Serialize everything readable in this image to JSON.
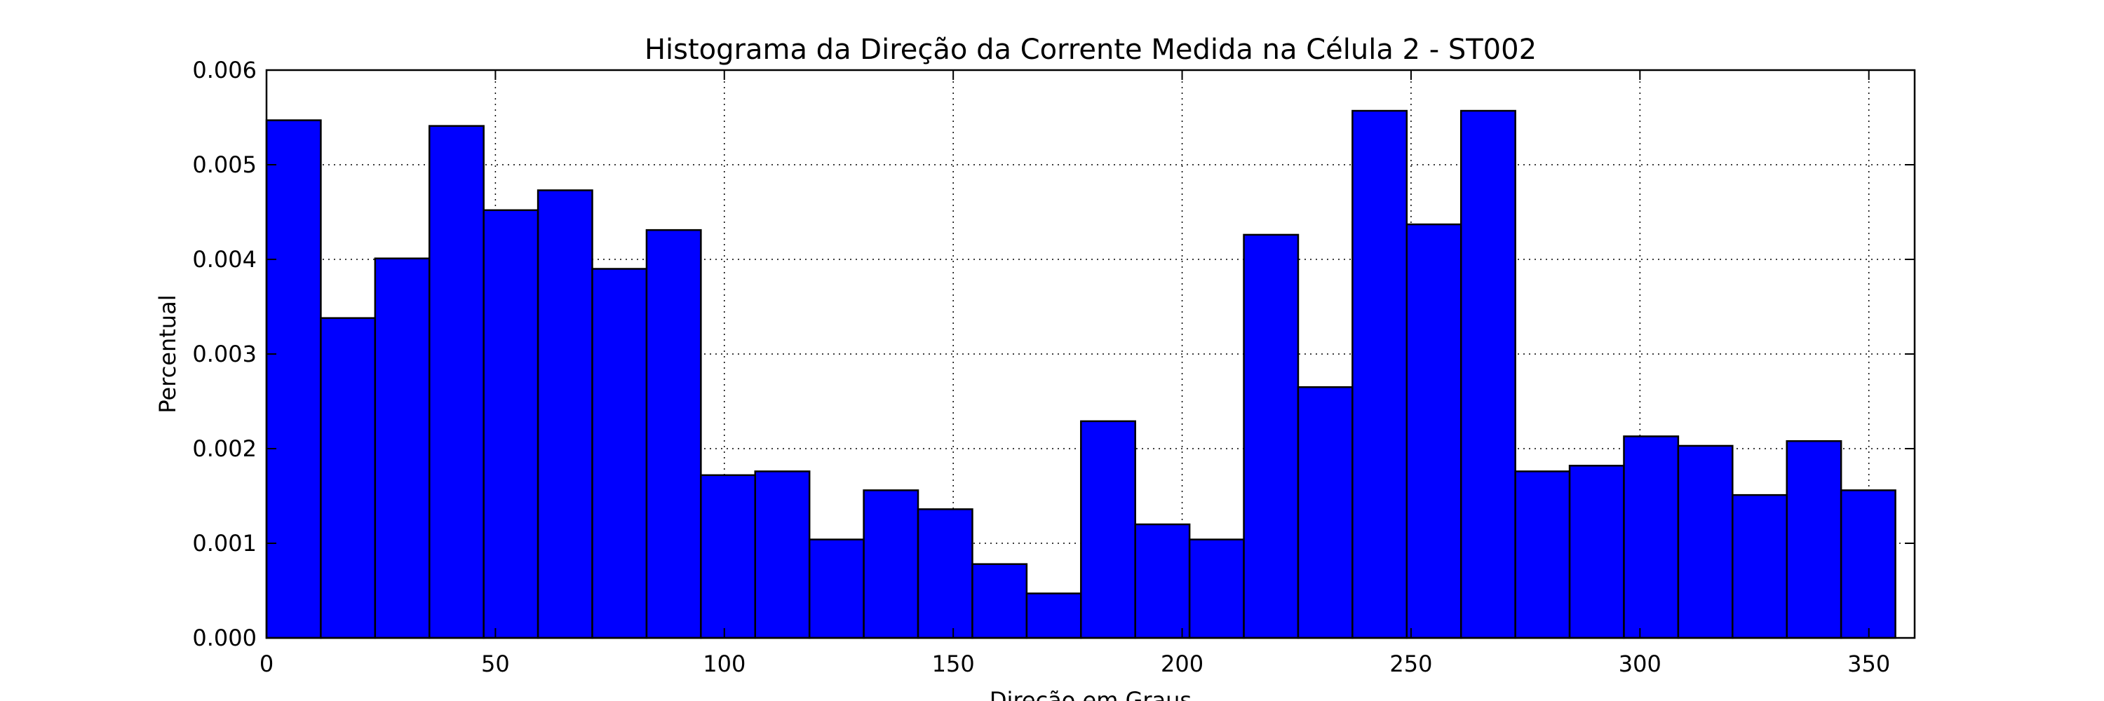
{
  "chart_data": {
    "type": "bar",
    "title": "Histograma da Direção da Corrente Medida na Célula 2 - ST002",
    "xlabel": "Direção em Graus",
    "ylabel": "Percentual",
    "xlim": [
      0,
      360
    ],
    "ylim": [
      0,
      0.006
    ],
    "grid": true,
    "bar_color": "#0000ff",
    "edge_color": "#000000",
    "bin_edges": [
      0.0,
      11.86,
      23.72,
      35.58,
      47.44,
      59.3,
      71.16,
      83.02,
      94.88,
      106.74,
      118.6,
      130.46,
      142.32,
      154.18,
      166.04,
      177.9,
      189.76,
      201.62,
      213.48,
      225.34,
      237.2,
      249.06,
      260.92,
      272.78,
      284.64,
      296.5,
      308.36,
      320.22,
      332.08,
      343.94,
      355.8
    ],
    "values": [
      0.00547,
      0.00338,
      0.00401,
      0.00541,
      0.00452,
      0.00473,
      0.0039,
      0.00431,
      0.00172,
      0.00176,
      0.00104,
      0.00156,
      0.00136,
      0.00078,
      0.00047,
      0.00229,
      0.0012,
      0.00104,
      0.00426,
      0.00265,
      0.00557,
      0.00437,
      0.00557,
      0.00176,
      0.00182,
      0.00213,
      0.00203,
      0.00151,
      0.00208,
      0.00156
    ],
    "x_ticks": [
      {
        "value": 0,
        "label": "0"
      },
      {
        "value": 50,
        "label": "50"
      },
      {
        "value": 100,
        "label": "100"
      },
      {
        "value": 150,
        "label": "150"
      },
      {
        "value": 200,
        "label": "200"
      },
      {
        "value": 250,
        "label": "250"
      },
      {
        "value": 300,
        "label": "300"
      },
      {
        "value": 350,
        "label": "350"
      }
    ],
    "y_ticks": [
      {
        "value": 0.0,
        "label": "0.000"
      },
      {
        "value": 0.001,
        "label": "0.001"
      },
      {
        "value": 0.002,
        "label": "0.002"
      },
      {
        "value": 0.003,
        "label": "0.003"
      },
      {
        "value": 0.004,
        "label": "0.004"
      },
      {
        "value": 0.005,
        "label": "0.005"
      },
      {
        "value": 0.006,
        "label": "0.006"
      }
    ]
  }
}
